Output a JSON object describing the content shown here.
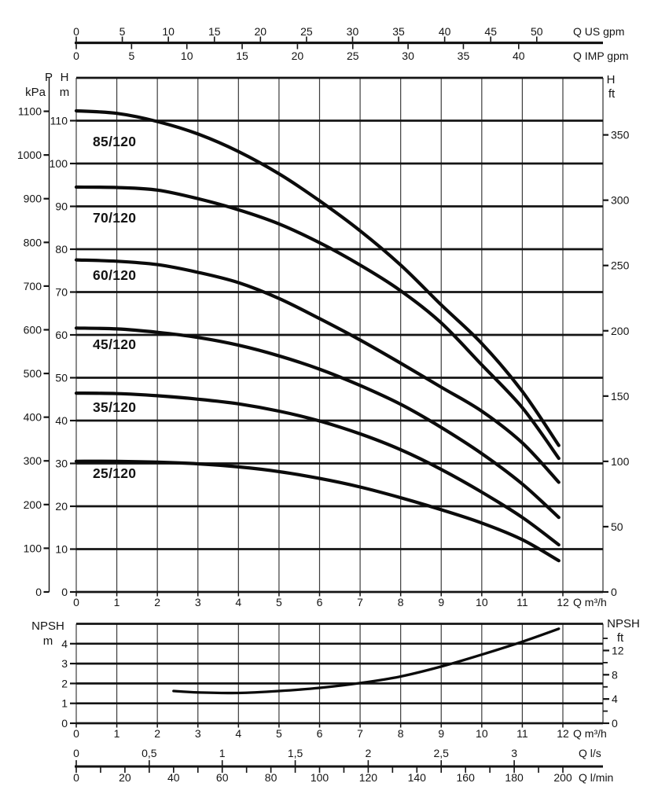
{
  "figure": {
    "background": "#ffffff",
    "ink": "#141414",
    "grid_vertical_color": "#3c3c3c",
    "curve_color": "#0b0b0b"
  },
  "conversions": {
    "us_gpm_per_m3h": 4.4029,
    "imp_gpm_per_m3h": 3.6662,
    "ft_per_m": 3.2808,
    "m_head_per_100_kpa": 10.199,
    "m3h_per_l_s": 3.6,
    "m3h_per_l_min": 0.06
  },
  "chart_data": [
    {
      "name": "head_capacity_chart",
      "type": "line",
      "x_axis": {
        "unit_label": "Q m³/h",
        "min": 0,
        "max": 12,
        "tick_labels": [
          "0",
          "1",
          "2",
          "3",
          "4",
          "5",
          "6",
          "7",
          "8",
          "9",
          "10",
          "11",
          "12"
        ]
      },
      "top_axis_us": {
        "unit_label": "Q US gpm",
        "tick_labels": [
          "0",
          "5",
          "10",
          "15",
          "20",
          "25",
          "30",
          "35",
          "40",
          "45",
          "50"
        ]
      },
      "top_axis_imp": {
        "unit_label": "Q IMP gpm",
        "tick_labels": [
          "0",
          "5",
          "10",
          "15",
          "20",
          "25",
          "30",
          "35",
          "40"
        ]
      },
      "y_axis_m": {
        "header": [
          "H",
          "m"
        ],
        "min": 0,
        "max_grid": 120,
        "grid_step": 10,
        "tick_labels": [
          "0",
          "10",
          "20",
          "30",
          "40",
          "50",
          "60",
          "70",
          "80",
          "90",
          "100",
          "110"
        ]
      },
      "y_axis_kpa": {
        "header": [
          "P",
          "kPa"
        ],
        "tick_labels": [
          "0",
          "100",
          "200",
          "300",
          "400",
          "500",
          "600",
          "700",
          "800",
          "900",
          "1000",
          "1100"
        ]
      },
      "y_axis_ft": {
        "header": [
          "H",
          "ft"
        ],
        "tick_labels": [
          "0",
          "50",
          "100",
          "150",
          "200",
          "250",
          "300",
          "350"
        ]
      },
      "series": [
        {
          "name": "85/120",
          "points": [
            [
              0,
              112.3
            ],
            [
              1,
              111.7
            ],
            [
              2,
              109.8
            ],
            [
              3,
              106.9
            ],
            [
              4,
              102.8
            ],
            [
              5,
              97.6
            ],
            [
              6,
              91.3
            ],
            [
              7,
              84.3
            ],
            [
              8,
              76.3
            ],
            [
              9,
              67.0
            ],
            [
              10,
              58.0
            ],
            [
              11,
              46.8
            ],
            [
              11.9,
              34.2
            ]
          ]
        },
        {
          "name": "70/120",
          "points": [
            [
              0,
              94.5
            ],
            [
              1,
              94.4
            ],
            [
              2,
              93.8
            ],
            [
              3,
              91.8
            ],
            [
              4,
              89.2
            ],
            [
              5,
              85.9
            ],
            [
              6,
              81.5
            ],
            [
              7,
              76.3
            ],
            [
              8,
              70.3
            ],
            [
              9,
              62.8
            ],
            [
              10,
              53.0
            ],
            [
              11,
              43.0
            ],
            [
              11.9,
              31.2
            ]
          ]
        },
        {
          "name": "60/120",
          "points": [
            [
              0,
              77.5
            ],
            [
              1,
              77.2
            ],
            [
              2,
              76.4
            ],
            [
              3,
              74.6
            ],
            [
              4,
              72.2
            ],
            [
              5,
              68.5
            ],
            [
              6,
              63.8
            ],
            [
              7,
              58.8
            ],
            [
              8,
              53.4
            ],
            [
              9,
              47.8
            ],
            [
              10,
              42.2
            ],
            [
              11,
              34.8
            ],
            [
              11.9,
              25.6
            ]
          ]
        },
        {
          "name": "45/120",
          "points": [
            [
              0,
              61.6
            ],
            [
              1,
              61.4
            ],
            [
              2,
              60.6
            ],
            [
              3,
              59.4
            ],
            [
              4,
              57.6
            ],
            [
              5,
              55.1
            ],
            [
              6,
              52.0
            ],
            [
              7,
              48.2
            ],
            [
              8,
              43.8
            ],
            [
              9,
              38.4
            ],
            [
              10,
              32.3
            ],
            [
              11,
              25.2
            ],
            [
              11.9,
              17.4
            ]
          ]
        },
        {
          "name": "35/120",
          "points": [
            [
              0,
              46.4
            ],
            [
              1,
              46.3
            ],
            [
              2,
              45.8
            ],
            [
              3,
              45.0
            ],
            [
              4,
              43.9
            ],
            [
              5,
              42.2
            ],
            [
              6,
              39.9
            ],
            [
              7,
              36.9
            ],
            [
              8,
              33.2
            ],
            [
              9,
              28.6
            ],
            [
              10,
              23.3
            ],
            [
              11,
              17.4
            ],
            [
              11.9,
              11.0
            ]
          ]
        },
        {
          "name": "25/120",
          "points": [
            [
              0,
              30.5
            ],
            [
              1,
              30.5
            ],
            [
              2,
              30.3
            ],
            [
              3,
              29.9
            ],
            [
              4,
              29.2
            ],
            [
              5,
              28.1
            ],
            [
              6,
              26.5
            ],
            [
              7,
              24.5
            ],
            [
              8,
              22.0
            ],
            [
              9,
              19.2
            ],
            [
              10,
              16.1
            ],
            [
              11,
              12.2
            ],
            [
              11.9,
              7.3
            ]
          ]
        }
      ]
    },
    {
      "name": "npsh_chart",
      "type": "line",
      "x_axis": {
        "unit_label": "Q m³/h",
        "min": 0,
        "max": 12,
        "tick_labels": [
          "0",
          "1",
          "2",
          "3",
          "4",
          "5",
          "6",
          "7",
          "8",
          "9",
          "10",
          "11",
          "12"
        ]
      },
      "y_axis_m": {
        "header": [
          "NPSH",
          "m"
        ],
        "min": 0,
        "max_grid": 5,
        "grid_step": 1,
        "tick_labels": [
          "0",
          "1",
          "2",
          "3",
          "4"
        ]
      },
      "y_axis_ft": {
        "header": [
          "NPSH",
          "ft"
        ],
        "tick_labels": [
          "0",
          "4",
          "8",
          "12"
        ],
        "minor_tick_step_ft": 2,
        "minor_tick_max_ft": 14
      },
      "series": [
        {
          "name": "NPSH",
          "points": [
            [
              2.4,
              1.62
            ],
            [
              3,
              1.55
            ],
            [
              4,
              1.52
            ],
            [
              5,
              1.62
            ],
            [
              6,
              1.78
            ],
            [
              7,
              2.02
            ],
            [
              8,
              2.35
            ],
            [
              9,
              2.85
            ],
            [
              10,
              3.45
            ],
            [
              11,
              4.1
            ],
            [
              11.9,
              4.75
            ]
          ]
        }
      ]
    },
    {
      "name": "bottom_flow_scales",
      "type": "axis-scales",
      "l_s": {
        "unit_label": "Q l/s",
        "tick_labels": [
          "0",
          "0,5",
          "1",
          "1,5",
          "2",
          "2,5",
          "3"
        ]
      },
      "l_min": {
        "unit_label": "Q l/min",
        "tick_labels": [
          "0",
          "20",
          "40",
          "60",
          "80",
          "100",
          "120",
          "140",
          "160",
          "180",
          "200"
        ],
        "minor_tick_step": 10
      }
    }
  ]
}
